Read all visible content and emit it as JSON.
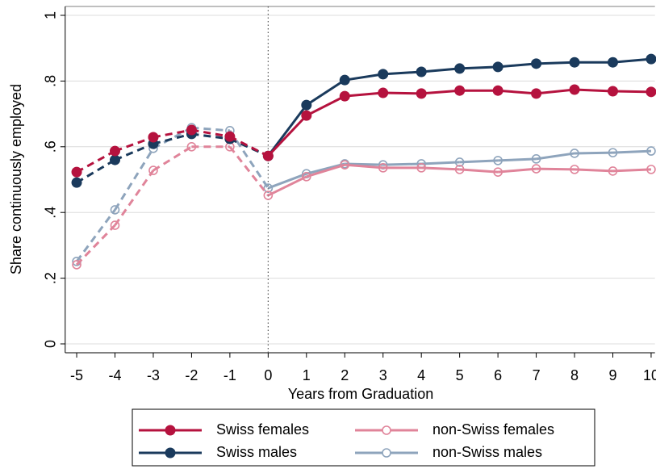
{
  "chart_data": {
    "type": "line",
    "x_label": "Years from Graduation",
    "y_label": "Share continuously employed",
    "x": [
      -5,
      -4,
      -3,
      -2,
      -1,
      0,
      1,
      2,
      3,
      4,
      5,
      6,
      7,
      8,
      9,
      10
    ],
    "xlim": [
      -5.3,
      10.1
    ],
    "xticks": [
      -5,
      -4,
      -3,
      -2,
      -1,
      0,
      1,
      2,
      3,
      4,
      5,
      6,
      7,
      8,
      9,
      10
    ],
    "ylim": [
      -0.027,
      1.027
    ],
    "yticks": [
      0,
      {
        "value": 0.2,
        "label": ".2"
      },
      {
        "value": 0.4,
        "label": ".4"
      },
      {
        "value": 0.6,
        "label": ".6"
      },
      {
        "value": 0.8,
        "label": ".8"
      },
      1
    ],
    "grid": true,
    "vline": 0,
    "dashed_before_vline": true,
    "legend": "bottom",
    "series": [
      {
        "name": "Swiss females",
        "color": "#b5123e",
        "marker": "filled",
        "values": [
          0.523,
          0.587,
          0.629,
          0.651,
          0.631,
          0.572,
          0.695,
          0.754,
          0.764,
          0.762,
          0.771,
          0.771,
          0.762,
          0.774,
          0.769,
          0.767
        ]
      },
      {
        "name": "Swiss males",
        "color": "#1a3a5c",
        "marker": "filled",
        "values": [
          0.491,
          0.56,
          0.609,
          0.639,
          0.624,
          0.572,
          0.727,
          0.803,
          0.821,
          0.828,
          0.838,
          0.843,
          0.853,
          0.857,
          0.857,
          0.867
        ]
      },
      {
        "name": "non-Swiss females",
        "color": "#e0849a",
        "marker": "hollow",
        "values": [
          0.241,
          0.361,
          0.528,
          0.6,
          0.6,
          0.452,
          0.509,
          0.545,
          0.536,
          0.536,
          0.531,
          0.523,
          0.533,
          0.531,
          0.526,
          0.531
        ]
      },
      {
        "name": "non-Swiss males",
        "color": "#8ea4bc",
        "marker": "hollow",
        "values": [
          0.251,
          0.408,
          0.595,
          0.658,
          0.649,
          0.474,
          0.518,
          0.548,
          0.545,
          0.548,
          0.553,
          0.558,
          0.563,
          0.58,
          0.582,
          0.587
        ]
      }
    ]
  }
}
